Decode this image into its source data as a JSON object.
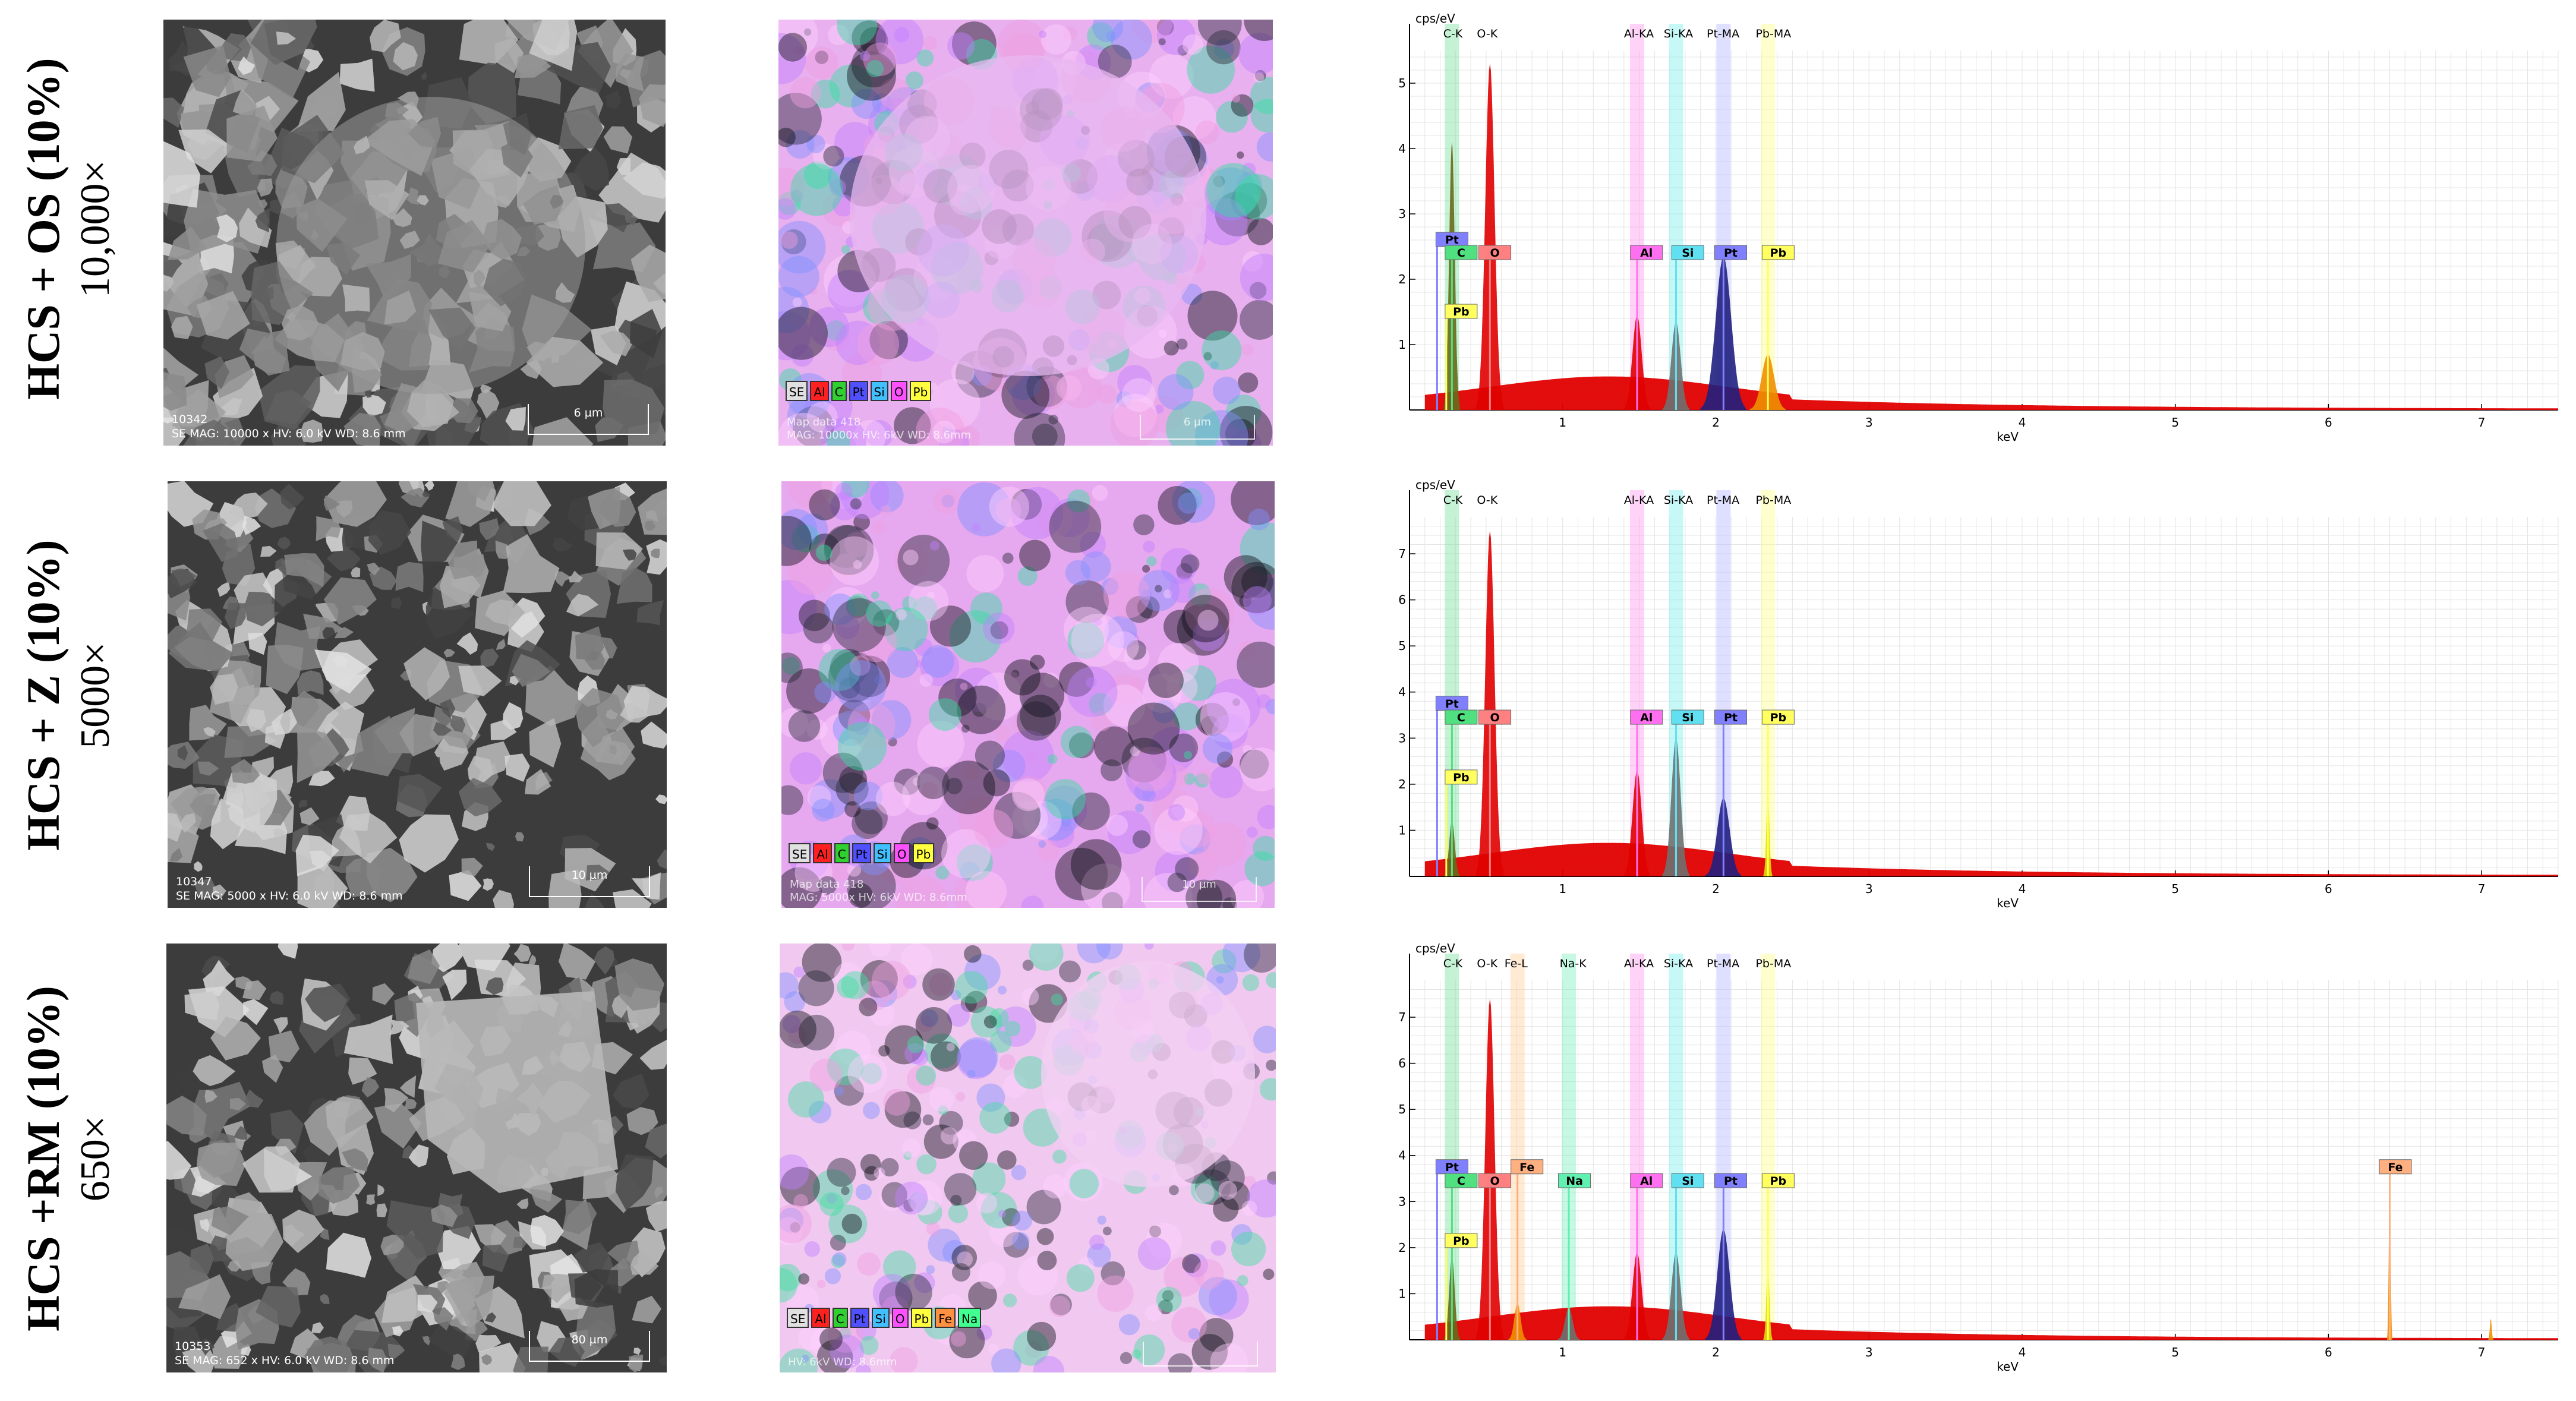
{
  "panels": [
    {
      "label": "HCS + OS (10%)",
      "mag": "10,000×",
      "sem_id": "10342",
      "sem_info": "SE MAG: 10000 x HV: 6.0 kV WD: 8.6 mm",
      "scale_bar": "6 µm",
      "map_info1": "Map data 418",
      "map_info2": "MAG: 10000x HV: 6kV WD: 8.6mm",
      "map_scale": "6 µm",
      "map_legend": [
        "SE",
        "Al",
        "C",
        "Pt",
        "Si",
        "O",
        "Pb"
      ],
      "map_legend_colors": [
        "#e0e0e0",
        "#ff2020",
        "#30d030",
        "#5050ff",
        "#40c0ff",
        "#ff50ff",
        "#ffff40"
      ],
      "map_base": "#e8b0ee",
      "map_accent": "#30e0a0",
      "chart_data": {
        "type": "line",
        "ylabel": "cps/eV",
        "xlabel": "keV",
        "xlim": [
          0,
          7.5
        ],
        "ylim": [
          0,
          5.5
        ],
        "xticks": [
          1,
          2,
          3,
          4,
          5,
          6,
          7
        ],
        "yticks": [
          1,
          2,
          3,
          4,
          5
        ],
        "top_labels": [
          {
            "text": "C-K",
            "x": 0.22
          },
          {
            "text": "O-K",
            "x": 0.44
          },
          {
            "text": "Al-KA",
            "x": 1.4
          },
          {
            "text": "Si-KA",
            "x": 1.66
          },
          {
            "text": "Pt-MA",
            "x": 1.94
          },
          {
            "text": "Pb-MA",
            "x": 2.26
          }
        ],
        "bands": [
          {
            "x": 0.277,
            "color": "#7fe0a0"
          },
          {
            "x": 1.486,
            "color": "#ff9cf0"
          },
          {
            "x": 1.74,
            "color": "#80f0f0"
          },
          {
            "x": 2.05,
            "color": "#b8b8ff"
          },
          {
            "x": 2.34,
            "color": "#ffff90"
          }
        ],
        "peaks": [
          {
            "x": 0.277,
            "y": 4.1,
            "w": 0.018,
            "color": "#6a6a1a"
          },
          {
            "x": 0.525,
            "y": 5.3,
            "w": 0.03,
            "color": "#e00000"
          },
          {
            "x": 1.486,
            "y": 1.45,
            "w": 0.03,
            "color": "#e00000"
          },
          {
            "x": 1.74,
            "y": 1.35,
            "w": 0.03,
            "color": "#707070"
          },
          {
            "x": 2.05,
            "y": 2.35,
            "w": 0.05,
            "color": "#202080"
          },
          {
            "x": 2.34,
            "y": 0.85,
            "w": 0.04,
            "color": "#f09000"
          }
        ],
        "markers": [
          {
            "text": "Pt",
            "x": 0.18,
            "y": 2.5,
            "bg": "#8080ff",
            "lx": 0.18
          },
          {
            "text": "C",
            "x": 0.277,
            "y": 2.3,
            "bg": "#50e080",
            "lx": 0.24
          },
          {
            "text": "O",
            "x": 0.525,
            "y": 2.3,
            "bg": "#ff8080",
            "lx": 0.46
          },
          {
            "text": "Pb",
            "x": 0.24,
            "y": 1.4,
            "bg": "#ffff60",
            "lx": 0.24
          },
          {
            "text": "Al",
            "x": 1.486,
            "y": 2.3,
            "bg": "#ff70f0",
            "lx": 1.45
          },
          {
            "text": "Si",
            "x": 1.74,
            "y": 2.3,
            "bg": "#60e0f0",
            "lx": 1.72
          },
          {
            "text": "Pt",
            "x": 2.05,
            "y": 2.3,
            "bg": "#8080ff",
            "lx": 2.0
          },
          {
            "text": "Pb",
            "x": 2.34,
            "y": 2.3,
            "bg": "#ffff60",
            "lx": 2.31
          }
        ]
      }
    },
    {
      "label": "HCS + Z (10%)",
      "mag": "5000×",
      "sem_id": "10347",
      "sem_info": "SE MAG: 5000 x HV: 6.0 kV WD: 8.6 mm",
      "scale_bar": "10 µm",
      "map_info1": "Map data 418",
      "map_info2": "MAG: 5000x HV: 6kV WD: 8.6mm",
      "map_scale": "10 µm",
      "map_legend": [
        "SE",
        "Al",
        "C",
        "Pt",
        "Si",
        "O",
        "Pb"
      ],
      "map_legend_colors": [
        "#e0e0e0",
        "#ff2020",
        "#30d030",
        "#5050ff",
        "#40c0ff",
        "#ff50ff",
        "#ffff40"
      ],
      "map_base": "#e6a8ee",
      "map_accent": "#30e0a0",
      "chart_data": {
        "type": "line",
        "ylabel": "cps/eV",
        "xlabel": "keV",
        "xlim": [
          0,
          7.5
        ],
        "ylim": [
          0,
          7.8
        ],
        "xticks": [
          1,
          2,
          3,
          4,
          5,
          6,
          7
        ],
        "yticks": [
          1,
          2,
          3,
          4,
          5,
          6,
          7
        ],
        "top_labels": [
          {
            "text": "C-K",
            "x": 0.22
          },
          {
            "text": "O-K",
            "x": 0.44
          },
          {
            "text": "Al-KA",
            "x": 1.4
          },
          {
            "text": "Si-KA",
            "x": 1.66
          },
          {
            "text": "Pt-MA",
            "x": 1.94
          },
          {
            "text": "Pb-MA",
            "x": 2.26
          }
        ],
        "bands": [
          {
            "x": 0.277,
            "color": "#7fe0a0"
          },
          {
            "x": 1.486,
            "color": "#ff9cf0"
          },
          {
            "x": 1.74,
            "color": "#80f0f0"
          },
          {
            "x": 2.05,
            "color": "#b8b8ff"
          },
          {
            "x": 2.34,
            "color": "#ffff90"
          }
        ],
        "peaks": [
          {
            "x": 0.277,
            "y": 1.2,
            "w": 0.018,
            "color": "#6a6a1a"
          },
          {
            "x": 0.525,
            "y": 7.5,
            "w": 0.03,
            "color": "#e00000"
          },
          {
            "x": 1.486,
            "y": 2.3,
            "w": 0.03,
            "color": "#e00000"
          },
          {
            "x": 1.74,
            "y": 3.0,
            "w": 0.03,
            "color": "#707070"
          },
          {
            "x": 2.05,
            "y": 1.7,
            "w": 0.04,
            "color": "#202080"
          },
          {
            "x": 2.34,
            "y": 1.8,
            "w": 0.01,
            "color": "#e0e000"
          }
        ],
        "markers": [
          {
            "text": "Pt",
            "x": 0.18,
            "y": 3.6,
            "bg": "#8080ff",
            "lx": 0.18
          },
          {
            "text": "C",
            "x": 0.277,
            "y": 3.3,
            "bg": "#50e080",
            "lx": 0.24
          },
          {
            "text": "O",
            "x": 0.525,
            "y": 3.3,
            "bg": "#ff8080",
            "lx": 0.46
          },
          {
            "text": "Pb",
            "x": 0.24,
            "y": 2.0,
            "bg": "#ffff60",
            "lx": 0.24
          },
          {
            "text": "Al",
            "x": 1.486,
            "y": 3.3,
            "bg": "#ff70f0",
            "lx": 1.45
          },
          {
            "text": "Si",
            "x": 1.74,
            "y": 3.3,
            "bg": "#60e0f0",
            "lx": 1.72
          },
          {
            "text": "Pt",
            "x": 2.05,
            "y": 3.3,
            "bg": "#8080ff",
            "lx": 2.0
          },
          {
            "text": "Pb",
            "x": 2.34,
            "y": 3.3,
            "bg": "#ffff60",
            "lx": 2.31
          }
        ]
      }
    },
    {
      "label": "HCS +RM (10%)",
      "mag": "650×",
      "sem_id": "10353",
      "sem_info": "SE MAG: 652 x HV: 6.0 kV WD: 8.6 mm",
      "scale_bar": "80 µm",
      "map_info1": "",
      "map_info2": "HV: 6kV WD: 8.6mm",
      "map_scale": "",
      "map_legend": [
        "SE",
        "Al",
        "C",
        "Pt",
        "Si",
        "O",
        "Pb",
        "Fe",
        "Na"
      ],
      "map_legend_colors": [
        "#e0e0e0",
        "#ff2020",
        "#30d030",
        "#5050ff",
        "#40c0ff",
        "#ff50ff",
        "#ffff40",
        "#ff9040",
        "#40ff90"
      ],
      "map_base": "#f0c8f0",
      "map_accent": "#40e0a0",
      "chart_data": {
        "type": "line",
        "ylabel": "cps/eV",
        "xlabel": "keV",
        "xlim": [
          0,
          7.5
        ],
        "ylim": [
          0,
          7.8
        ],
        "xticks": [
          1,
          2,
          3,
          4,
          5,
          6,
          7
        ],
        "yticks": [
          1,
          2,
          3,
          4,
          5,
          6,
          7
        ],
        "top_labels": [
          {
            "text": "C-K",
            "x": 0.22
          },
          {
            "text": "O-K",
            "x": 0.44
          },
          {
            "text": "Fe-L",
            "x": 0.62
          },
          {
            "text": "Na-K",
            "x": 0.98
          },
          {
            "text": "Al-KA",
            "x": 1.4
          },
          {
            "text": "Si-KA",
            "x": 1.66
          },
          {
            "text": "Pt-MA",
            "x": 1.94
          },
          {
            "text": "Pb-MA",
            "x": 2.26
          }
        ],
        "bands": [
          {
            "x": 0.277,
            "color": "#7fe0a0"
          },
          {
            "x": 0.705,
            "color": "#ffd0a0"
          },
          {
            "x": 1.04,
            "color": "#80f0c0"
          },
          {
            "x": 1.486,
            "color": "#ff9cf0"
          },
          {
            "x": 1.74,
            "color": "#80f0f0"
          },
          {
            "x": 2.05,
            "color": "#b8b8ff"
          },
          {
            "x": 2.34,
            "color": "#ffff90"
          }
        ],
        "peaks": [
          {
            "x": 0.277,
            "y": 1.8,
            "w": 0.018,
            "color": "#6a6a1a"
          },
          {
            "x": 0.525,
            "y": 7.4,
            "w": 0.03,
            "color": "#e00000"
          },
          {
            "x": 0.705,
            "y": 0.8,
            "w": 0.02,
            "color": "#f09000"
          },
          {
            "x": 1.04,
            "y": 0.7,
            "w": 0.025,
            "color": "#707070"
          },
          {
            "x": 1.486,
            "y": 1.9,
            "w": 0.03,
            "color": "#e00000"
          },
          {
            "x": 1.74,
            "y": 1.9,
            "w": 0.03,
            "color": "#707070"
          },
          {
            "x": 2.05,
            "y": 2.4,
            "w": 0.04,
            "color": "#202080"
          },
          {
            "x": 2.34,
            "y": 1.6,
            "w": 0.01,
            "color": "#e0e000"
          },
          {
            "x": 6.4,
            "y": 3.3,
            "w": 0.006,
            "color": "#f09000"
          },
          {
            "x": 7.06,
            "y": 0.45,
            "w": 0.006,
            "color": "#f09000"
          }
        ],
        "markers": [
          {
            "text": "Pt",
            "x": 0.18,
            "y": 3.6,
            "bg": "#8080ff",
            "lx": 0.18
          },
          {
            "text": "C",
            "x": 0.277,
            "y": 3.3,
            "bg": "#50e080",
            "lx": 0.24
          },
          {
            "text": "O",
            "x": 0.525,
            "y": 3.3,
            "bg": "#ff8080",
            "lx": 0.46
          },
          {
            "text": "Fe",
            "x": 0.705,
            "y": 3.6,
            "bg": "#ffb080",
            "lx": 0.67
          },
          {
            "text": "Na",
            "x": 1.04,
            "y": 3.3,
            "bg": "#60f0b0",
            "lx": 0.98
          },
          {
            "text": "Pb",
            "x": 0.24,
            "y": 2.0,
            "bg": "#ffff60",
            "lx": 0.24
          },
          {
            "text": "Al",
            "x": 1.486,
            "y": 3.3,
            "bg": "#ff70f0",
            "lx": 1.45
          },
          {
            "text": "Si",
            "x": 1.74,
            "y": 3.3,
            "bg": "#60e0f0",
            "lx": 1.72
          },
          {
            "text": "Pt",
            "x": 2.05,
            "y": 3.3,
            "bg": "#8080ff",
            "lx": 2.0
          },
          {
            "text": "Pb",
            "x": 2.34,
            "y": 3.3,
            "bg": "#ffff60",
            "lx": 2.31
          },
          {
            "text": "Fe",
            "x": 6.4,
            "y": 3.6,
            "bg": "#ffb080",
            "lx": 6.34
          }
        ]
      }
    }
  ]
}
